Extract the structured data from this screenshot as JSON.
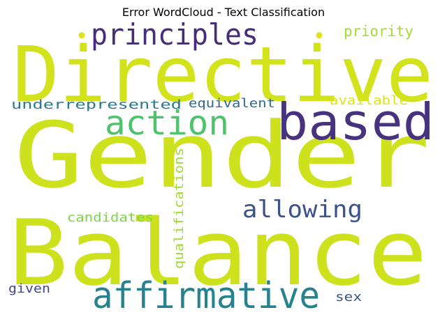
{
  "chart_data": {
    "type": "wordcloud",
    "title": "Error WordCloud - Text Classification",
    "words": [
      {
        "text": "Gender",
        "color": "#cde11d"
      },
      {
        "text": "Balance",
        "color": "#cde11d"
      },
      {
        "text": "Directive",
        "color": "#d2e21b"
      },
      {
        "text": "based",
        "color": "#46327e"
      },
      {
        "text": "affirmative",
        "color": "#26828e"
      },
      {
        "text": "principles",
        "color": "#472c7a"
      },
      {
        "text": "action",
        "color": "#4ec36b"
      },
      {
        "text": "allowing",
        "color": "#3b528b"
      },
      {
        "text": "priority",
        "color": "#a5db36"
      },
      {
        "text": "underrepresented",
        "color": "#2a788e"
      },
      {
        "text": "equivalent",
        "color": "#31688e"
      },
      {
        "text": "available",
        "color": "#dde318"
      },
      {
        "text": "qualifications",
        "color": "#a0da39"
      },
      {
        "text": "candidates",
        "color": "#7fd34e"
      },
      {
        "text": "given",
        "color": "#3e4a89"
      },
      {
        "text": "sex",
        "color": "#39568c"
      },
      {
        "text": "•",
        "color": "#dde318"
      },
      {
        "text": "•",
        "color": "#dde318"
      }
    ]
  }
}
